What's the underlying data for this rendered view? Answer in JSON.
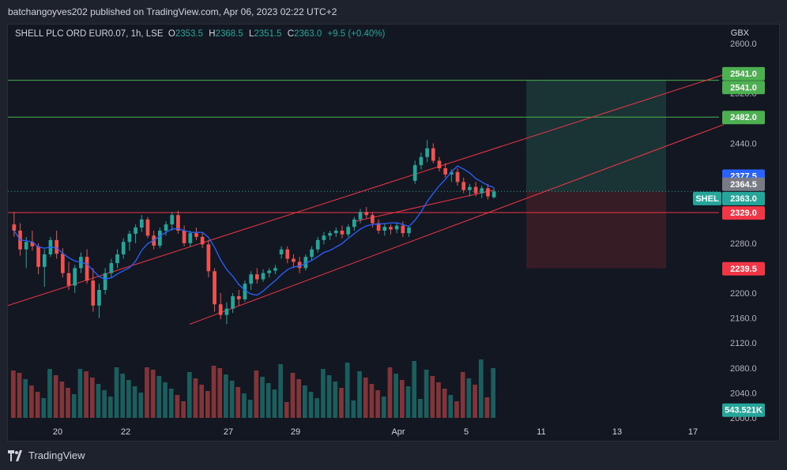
{
  "header": {
    "published": "batchangoyves202 published on TradingView.com, Apr 06, 2023 02:22 UTC+2"
  },
  "legend": {
    "symbol": "SHELL PLC ORD EUR0.07, 1h, LSE",
    "o_label": "O",
    "o_value": "2353.5",
    "h_label": "H",
    "h_value": "2368.5",
    "l_label": "L",
    "l_value": "2351.5",
    "c_label": "C",
    "c_value": "2363.0",
    "change": "+9.5 (+0.40%)"
  },
  "footer": {
    "brand": "TradingView"
  },
  "colors": {
    "background": "#131722",
    "up": "#26a69a",
    "down": "#ef5350",
    "ma": "#2962ff",
    "target_zone": "#1c3a3a",
    "stop_zone": "#3c1d26",
    "green_level": "#4caf50",
    "red_level": "#f23645"
  },
  "chart_data": {
    "type": "candlestick",
    "currency": "GBX",
    "y_axis_ticks": [
      "2600.0",
      "2520.0",
      "2440.0",
      "2280.0",
      "2200.0",
      "2160.0",
      "2120.0",
      "2080.0",
      "2040.0",
      "2000.0"
    ],
    "x_axis_ticks": [
      "20",
      "22",
      "27",
      "29",
      "Apr",
      "5",
      "11",
      "13",
      "17"
    ],
    "y_range": [
      2000,
      2600
    ],
    "open": 2353.5,
    "high": 2368.5,
    "low": 2351.5,
    "close": 2363.0,
    "change": 9.5,
    "change_pct": 0.4,
    "price_labels": [
      {
        "id": "level-2541-a",
        "text": "2541.0",
        "color": "#4caf50"
      },
      {
        "id": "level-2541-b",
        "text": "2541.0",
        "color": "#4caf50"
      },
      {
        "id": "level-2482",
        "text": "2482.0",
        "color": "#4caf50"
      },
      {
        "id": "ma-2377",
        "text": "2377.5",
        "color": "#2962ff"
      },
      {
        "id": "level-2364",
        "text": "2364.5",
        "color": "#787b86"
      },
      {
        "id": "last-2363",
        "text": "2363.0",
        "color": "#26a69a"
      },
      {
        "id": "level-2329",
        "text": "2329.0",
        "color": "#f23645"
      },
      {
        "id": "level-2239",
        "text": "2239.5",
        "color": "#f23645"
      },
      {
        "id": "volume",
        "text": "543.521K",
        "color": "#26a69a"
      }
    ],
    "symbol_tag": "SHEL",
    "horizontal_levels": [
      2541.0,
      2482.0,
      2329.0
    ],
    "position_tool": {
      "entry": 2363.0,
      "target": 2541.0,
      "stop": 2239.5
    },
    "moving_average_last": 2377.5,
    "volume_last": "543.521K",
    "candles_approx": [
      [
        2310,
        2330,
        2290,
        2300
      ],
      [
        2300,
        2312,
        2260,
        2270
      ],
      [
        2270,
        2290,
        2240,
        2282
      ],
      [
        2282,
        2300,
        2268,
        2275
      ],
      [
        2275,
        2280,
        2230,
        2242
      ],
      [
        2242,
        2270,
        2210,
        2262
      ],
      [
        2262,
        2290,
        2258,
        2285
      ],
      [
        2285,
        2300,
        2255,
        2263
      ],
      [
        2263,
        2272,
        2225,
        2232
      ],
      [
        2232,
        2250,
        2205,
        2212
      ],
      [
        2212,
        2245,
        2200,
        2240
      ],
      [
        2240,
        2265,
        2232,
        2258
      ],
      [
        2258,
        2270,
        2215,
        2220
      ],
      [
        2220,
        2240,
        2170,
        2180
      ],
      [
        2180,
        2215,
        2160,
        2205
      ],
      [
        2205,
        2240,
        2198,
        2232
      ],
      [
        2232,
        2255,
        2225,
        2248
      ],
      [
        2248,
        2270,
        2240,
        2262
      ],
      [
        2262,
        2288,
        2255,
        2282
      ],
      [
        2282,
        2300,
        2268,
        2295
      ],
      [
        2295,
        2310,
        2280,
        2305
      ],
      [
        2305,
        2325,
        2298,
        2318
      ],
      [
        2318,
        2322,
        2288,
        2292
      ],
      [
        2292,
        2300,
        2270,
        2276
      ],
      [
        2276,
        2305,
        2272,
        2300
      ],
      [
        2300,
        2315,
        2292,
        2310
      ],
      [
        2310,
        2330,
        2300,
        2325
      ],
      [
        2325,
        2332,
        2295,
        2300
      ],
      [
        2300,
        2308,
        2275,
        2280
      ],
      [
        2280,
        2300,
        2274,
        2296
      ],
      [
        2296,
        2305,
        2285,
        2290
      ],
      [
        2290,
        2298,
        2272,
        2278
      ],
      [
        2278,
        2285,
        2225,
        2235
      ],
      [
        2235,
        2240,
        2170,
        2182
      ],
      [
        2182,
        2200,
        2158,
        2165
      ],
      [
        2165,
        2185,
        2150,
        2175
      ],
      [
        2175,
        2200,
        2168,
        2195
      ],
      [
        2195,
        2205,
        2180,
        2190
      ],
      [
        2190,
        2220,
        2186,
        2215
      ],
      [
        2215,
        2235,
        2205,
        2230
      ],
      [
        2230,
        2240,
        2215,
        2222
      ],
      [
        2222,
        2238,
        2218,
        2232
      ],
      [
        2232,
        2240,
        2225,
        2236
      ],
      [
        2236,
        2245,
        2230,
        2240
      ],
      [
        2262,
        2275,
        2255,
        2270
      ],
      [
        2270,
        2275,
        2248,
        2255
      ],
      [
        2255,
        2262,
        2240,
        2250
      ],
      [
        2250,
        2258,
        2232,
        2240
      ],
      [
        2240,
        2262,
        2236,
        2258
      ],
      [
        2258,
        2275,
        2252,
        2270
      ],
      [
        2270,
        2290,
        2265,
        2285
      ],
      [
        2285,
        2298,
        2278,
        2292
      ],
      [
        2292,
        2300,
        2285,
        2296
      ],
      [
        2296,
        2305,
        2290,
        2300
      ],
      [
        2300,
        2308,
        2288,
        2294
      ],
      [
        2294,
        2310,
        2290,
        2306
      ],
      [
        2306,
        2322,
        2300,
        2318
      ],
      [
        2318,
        2335,
        2312,
        2330
      ],
      [
        2330,
        2338,
        2320,
        2325
      ],
      [
        2325,
        2330,
        2305,
        2312
      ],
      [
        2312,
        2318,
        2295,
        2300
      ],
      [
        2300,
        2312,
        2292,
        2306
      ],
      [
        2306,
        2310,
        2294,
        2302
      ],
      [
        2302,
        2312,
        2296,
        2308
      ],
      [
        2308,
        2315,
        2290,
        2296
      ],
      [
        2296,
        2308,
        2290,
        2305
      ],
      [
        2380,
        2412,
        2375,
        2405
      ],
      [
        2405,
        2425,
        2398,
        2418
      ],
      [
        2418,
        2445,
        2410,
        2432
      ],
      [
        2432,
        2440,
        2408,
        2412
      ],
      [
        2412,
        2418,
        2395,
        2400
      ],
      [
        2400,
        2408,
        2385,
        2390
      ],
      [
        2390,
        2398,
        2378,
        2394
      ],
      [
        2394,
        2400,
        2372,
        2378
      ],
      [
        2378,
        2385,
        2360,
        2365
      ],
      [
        2365,
        2375,
        2355,
        2370
      ],
      [
        2370,
        2378,
        2355,
        2360
      ],
      [
        2360,
        2372,
        2352,
        2368
      ],
      [
        2368,
        2375,
        2350,
        2355
      ],
      [
        2353.5,
        2368.5,
        2351.5,
        2363
      ]
    ]
  }
}
